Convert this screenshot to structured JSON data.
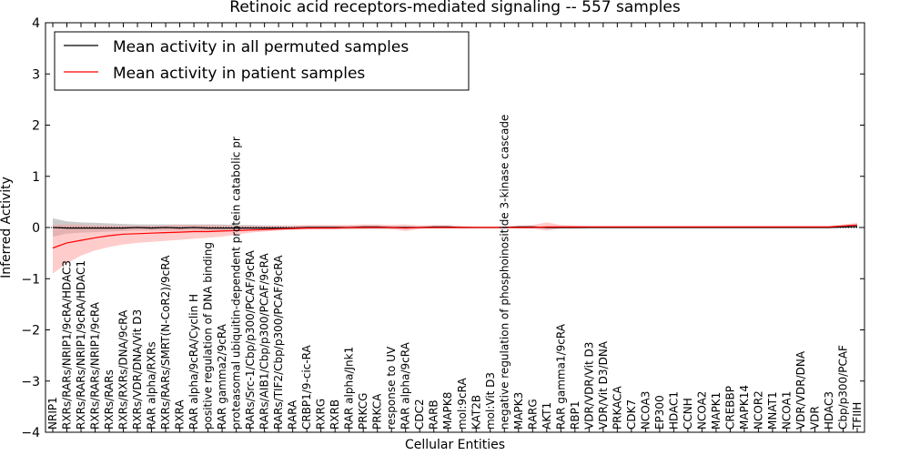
{
  "chart_data": {
    "type": "line",
    "title": "Retinoic acid receptors-mediated signaling -- 557 samples",
    "xlabel": "Cellular Entities",
    "ylabel": "Inferred Activity",
    "ylim": [
      -4,
      4
    ],
    "yticks": [
      "−4",
      "−3",
      "−2",
      "−1",
      "0",
      "1",
      "2",
      "3",
      "4"
    ],
    "legend_position": "top-left",
    "categories": [
      "NRIP1",
      "RXRs/RARs/NRIP1/9cRA/HDAC3",
      "RXRs/RARs/NRIP1/9cRA/HDAC1",
      "RXRs/RARs/NRIP1/9cRA",
      "RXRs/RARs",
      "RXRs/RXRs/DNA/9cRA",
      "RXRs/VDR/DNA/Vit D3",
      "RAR alpha/RXRs",
      "RXRs/RARs/SMRT(N-CoR2)/9cRA",
      "RXRA",
      "RAR alpha/9cRA/Cyclin H",
      "positive regulation of DNA binding",
      "RAR gamma2/9cRA",
      "proteasomal ubiquitin-dependent protein catabolic pr",
      "RARs/Src-1/Cbp/p300/PCAF/9cRA",
      "RARs/AIB1/Cbp/p300/PCAF/9cRA",
      "RARs/TIF2/Cbp/p300/PCAF/9cRA",
      "RARA",
      "CRBP1/9-cic-RA",
      "RXRG",
      "RXRB",
      "RAR alpha/Jnk1",
      "PRKCG",
      "PRKCA",
      "response to UV",
      "RAR alpha/9cRA",
      "CDC2",
      "RARB",
      "MAPK8",
      "mol:9cRA",
      "KAT2B",
      "mol:Vit D3",
      "negative regulation of phosphoinositide 3-kinase cascade",
      "MAPK3",
      "RARG",
      "AKT1",
      "RAR gamma1/9cRA",
      "RBP1",
      "VDR/VDR/Vit D3",
      "VDR/Vit D3/DNA",
      "PRKACA",
      "CDK7",
      "NCOA3",
      "EP300",
      "HDAC1",
      "CCNH",
      "NCOA2",
      "MAPK1",
      "CREBBP",
      "MAPK14",
      "NCOR2",
      "MNAT1",
      "NCOA1",
      "VDR/VDR/DNA",
      "VDR",
      "HDAC3",
      "Cbp/p300/PCAF",
      "TFIIH"
    ],
    "series": [
      {
        "name": "Mean activity in all permuted samples",
        "color": "#000000",
        "values": [
          0.0,
          -0.01,
          -0.01,
          -0.01,
          -0.01,
          -0.01,
          0.0,
          -0.01,
          0.0,
          -0.01,
          0.0,
          -0.01,
          -0.01,
          -0.01,
          -0.01,
          -0.01,
          -0.01,
          -0.01,
          0.0,
          0.0,
          0.0,
          0.0,
          0.01,
          0.01,
          0.0,
          0.0,
          0.0,
          0.01,
          0.01,
          0.0,
          0.0,
          0.0,
          0.0,
          0.01,
          0.01,
          0.0,
          0.0,
          0.0,
          0.0,
          0.0,
          0.0,
          0.0,
          0.0,
          0.0,
          0.0,
          0.0,
          0.0,
          0.0,
          0.0,
          0.0,
          0.0,
          0.0,
          0.0,
          0.0,
          0.0,
          0.0,
          0.01,
          0.02
        ],
        "band_color": "#a0a0a0",
        "band_lower": [
          -0.18,
          -0.12,
          -0.1,
          -0.09,
          -0.08,
          -0.07,
          -0.06,
          -0.06,
          -0.06,
          -0.06,
          -0.06,
          -0.06,
          -0.06,
          -0.05,
          -0.05,
          -0.04,
          -0.04,
          -0.03,
          -0.03,
          -0.03,
          -0.03,
          -0.03,
          -0.03,
          -0.03,
          -0.03,
          -0.02,
          -0.02,
          -0.02,
          -0.02,
          -0.02,
          -0.01,
          -0.01,
          -0.01,
          -0.02,
          -0.02,
          -0.02,
          -0.02,
          -0.02,
          -0.01,
          -0.01,
          -0.01,
          -0.01,
          -0.01,
          -0.01,
          -0.01,
          -0.01,
          -0.01,
          -0.01,
          -0.01,
          -0.01,
          -0.01,
          -0.01,
          -0.01,
          -0.01,
          -0.01,
          -0.01,
          -0.01,
          -0.01
        ],
        "band_upper": [
          0.18,
          0.12,
          0.1,
          0.09,
          0.08,
          0.07,
          0.06,
          0.06,
          0.06,
          0.06,
          0.06,
          0.06,
          0.06,
          0.05,
          0.05,
          0.04,
          0.04,
          0.03,
          0.03,
          0.03,
          0.03,
          0.03,
          0.03,
          0.03,
          0.03,
          0.02,
          0.02,
          0.02,
          0.02,
          0.02,
          0.01,
          0.01,
          0.01,
          0.02,
          0.02,
          0.02,
          0.02,
          0.02,
          0.01,
          0.01,
          0.01,
          0.01,
          0.01,
          0.01,
          0.01,
          0.01,
          0.01,
          0.01,
          0.01,
          0.01,
          0.01,
          0.01,
          0.01,
          0.01,
          0.01,
          0.01,
          0.02,
          0.04
        ]
      },
      {
        "name": "Mean activity in patient samples",
        "color": "#ff0000",
        "values": [
          -0.4,
          -0.3,
          -0.25,
          -0.2,
          -0.16,
          -0.13,
          -0.12,
          -0.11,
          -0.1,
          -0.09,
          -0.08,
          -0.08,
          -0.07,
          -0.06,
          -0.05,
          -0.04,
          -0.03,
          -0.02,
          -0.01,
          -0.01,
          -0.01,
          0.0,
          0.0,
          0.0,
          0.0,
          -0.01,
          0.0,
          0.0,
          0.0,
          0.0,
          0.0,
          0.0,
          0.0,
          0.0,
          0.0,
          0.01,
          0.01,
          0.01,
          0.01,
          0.01,
          0.01,
          0.01,
          0.01,
          0.01,
          0.01,
          0.01,
          0.01,
          0.01,
          0.01,
          0.01,
          0.01,
          0.01,
          0.01,
          0.01,
          0.01,
          0.01,
          0.03,
          0.05
        ],
        "band_color": "#ff9999",
        "band_lower": [
          -0.9,
          -0.7,
          -0.55,
          -0.45,
          -0.38,
          -0.33,
          -0.3,
          -0.28,
          -0.26,
          -0.24,
          -0.22,
          -0.2,
          -0.18,
          -0.14,
          -0.1,
          -0.08,
          -0.06,
          -0.05,
          -0.04,
          -0.03,
          -0.03,
          -0.03,
          -0.03,
          -0.02,
          -0.03,
          -0.07,
          -0.03,
          -0.02,
          -0.02,
          -0.02,
          -0.01,
          -0.01,
          -0.01,
          -0.02,
          -0.02,
          -0.06,
          -0.02,
          -0.02,
          -0.01,
          -0.01,
          -0.01,
          -0.01,
          -0.01,
          -0.01,
          -0.01,
          -0.01,
          -0.01,
          -0.01,
          -0.01,
          -0.01,
          -0.01,
          -0.01,
          -0.01,
          -0.01,
          -0.01,
          -0.01,
          0.0,
          0.02
        ],
        "band_upper": [
          0.05,
          0.06,
          0.05,
          0.04,
          0.04,
          0.03,
          0.03,
          0.03,
          0.04,
          0.05,
          0.05,
          0.05,
          0.04,
          0.03,
          0.03,
          0.03,
          0.03,
          0.04,
          0.05,
          0.05,
          0.05,
          0.05,
          0.06,
          0.06,
          0.05,
          0.06,
          0.04,
          0.05,
          0.05,
          0.03,
          0.02,
          0.02,
          0.02,
          0.04,
          0.05,
          0.1,
          0.05,
          0.04,
          0.03,
          0.03,
          0.03,
          0.03,
          0.03,
          0.03,
          0.03,
          0.03,
          0.03,
          0.03,
          0.03,
          0.03,
          0.03,
          0.03,
          0.03,
          0.03,
          0.03,
          0.03,
          0.06,
          0.09
        ]
      }
    ]
  }
}
